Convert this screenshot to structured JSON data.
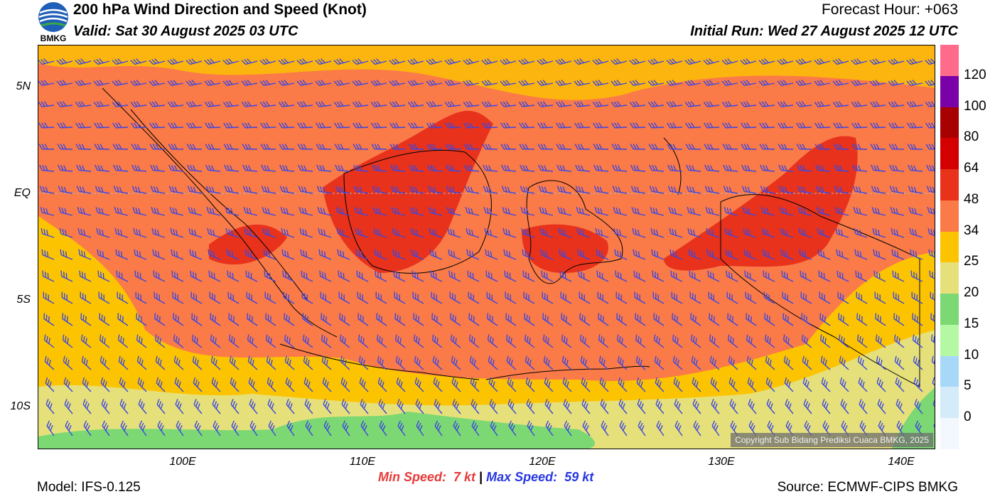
{
  "header": {
    "title": "200 hPa Wind Direction and Speed (Knot)",
    "valid": "Valid: Sat 30 August 2025 03 UTC",
    "forecast_hour": "Forecast Hour: +063",
    "initial_run": "Initial Run: Wed 27 August 2025 12 UTC",
    "logo_text": "BMKG"
  },
  "map": {
    "lat_labels": [
      "5N",
      "EQ",
      "5S",
      "10S"
    ],
    "lon_labels": [
      "100E",
      "110E",
      "120E",
      "130E",
      "140E"
    ],
    "copyright": "Copyright Sub Bidang Prediksi Cuaca BMKG, 2025",
    "barb_color": "#3b48e0"
  },
  "colorbar": {
    "labels": [
      "120",
      "100",
      "80",
      "64",
      "48",
      "34",
      "25",
      "20",
      "15",
      "10",
      "5",
      "0"
    ],
    "colors": [
      "#ff6b8a",
      "#7a00a8",
      "#a80000",
      "#d40000",
      "#e8321c",
      "#fa7a48",
      "#fcc400",
      "#e6e07a",
      "#7cd872",
      "#b4f8a4",
      "#a8d8f8",
      "#d4ecfa",
      "#f2f8fe"
    ]
  },
  "footer": {
    "min_label": "Min Speed:",
    "min_value": "7 kt",
    "separator": "|",
    "max_label": "Max Speed:",
    "max_value": "59 kt",
    "model": "Model: IFS-0.125",
    "source": "Source: ECMWF-CIPS BMKG",
    "min_color": "#e83a3a",
    "max_color": "#2838e0"
  }
}
